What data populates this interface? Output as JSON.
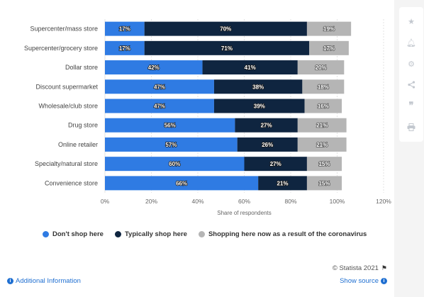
{
  "chart_data": {
    "type": "bar",
    "orientation": "horizontal",
    "stacked": true,
    "categories": [
      "Supercenter/mass store",
      "Supercenter/grocery store",
      "Dollar store",
      "Discount supermarket",
      "Wholesale/club store",
      "Drug store",
      "Online retailer",
      "Specialty/natural store",
      "Convenience store"
    ],
    "series": [
      {
        "name": "Don't shop here",
        "color": "#2f7be3",
        "values": [
          17,
          17,
          42,
          47,
          47,
          56,
          57,
          60,
          66
        ]
      },
      {
        "name": "Typically shop here",
        "color": "#0f2540",
        "values": [
          70,
          71,
          41,
          38,
          39,
          27,
          26,
          27,
          21
        ]
      },
      {
        "name": "Shopping here now as a result of the coronavirus",
        "color": "#b5b5b5",
        "values": [
          19,
          17,
          20,
          18,
          16,
          21,
          21,
          15,
          15
        ]
      }
    ],
    "xlim": [
      0,
      120
    ],
    "xticks": [
      0,
      20,
      40,
      60,
      80,
      100,
      120
    ],
    "tick_suffix": "%",
    "label_suffix": "%",
    "xlabel": "Share of respondents",
    "ylabel": "",
    "title": "",
    "grid": true,
    "legend_position": "bottom"
  },
  "footer": {
    "copyright": "© Statista 2021",
    "additional_info": "Additional Information",
    "show_source": "Show source"
  },
  "toolbar": {
    "icons": [
      "star-icon",
      "bell-icon",
      "gear-icon",
      "share-icon",
      "quote-icon",
      "print-icon"
    ]
  }
}
